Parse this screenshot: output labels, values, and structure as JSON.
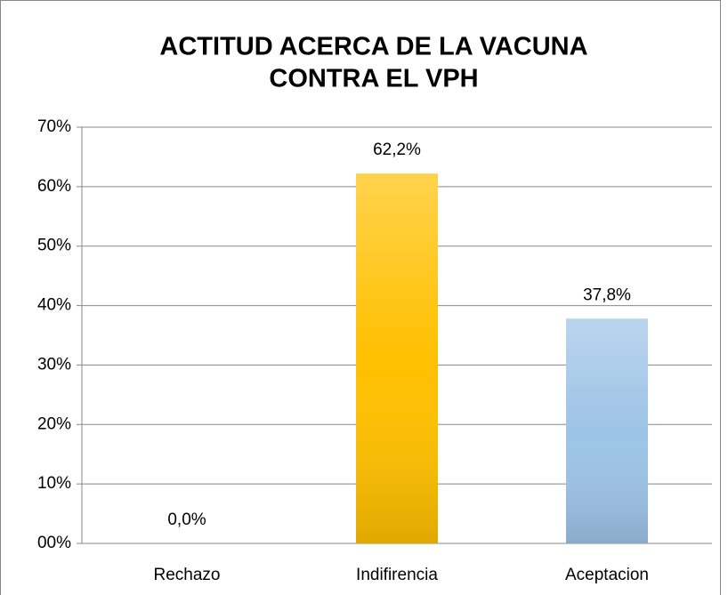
{
  "chart_data": {
    "type": "bar",
    "title": [
      "ACTITUD ACERCA DE LA VACUNA",
      "CONTRA EL VPH"
    ],
    "categories": [
      "Rechazo",
      "Indifirencia",
      "Aceptacion"
    ],
    "values": [
      0,
      62.2,
      37.8
    ],
    "value_labels": [
      "0,0%",
      "62,2%",
      "37,8%"
    ],
    "colors": [
      "#9dc3e6",
      "#ffc000",
      "#9dc3e6"
    ],
    "ylim": [
      0,
      70
    ],
    "yticks": [
      {
        "value": 0,
        "label": "00%"
      },
      {
        "value": 10,
        "label": "10%"
      },
      {
        "value": 20,
        "label": "20%"
      },
      {
        "value": 30,
        "label": "30%"
      },
      {
        "value": 40,
        "label": "40%"
      },
      {
        "value": 50,
        "label": "50%"
      },
      {
        "value": 60,
        "label": "60%"
      },
      {
        "value": 70,
        "label": "70%"
      }
    ],
    "grid": true
  }
}
